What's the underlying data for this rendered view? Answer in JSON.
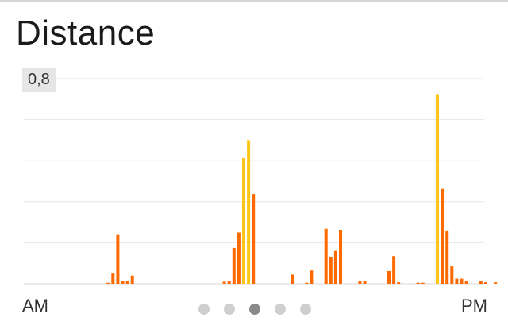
{
  "title": "Distance",
  "y_max_label": "0,8",
  "x_start_label": "AM",
  "x_end_label": "PM",
  "pager": {
    "count": 5,
    "active_index": 2
  },
  "colors": {
    "low": "#ff6a00",
    "high": "#ffc61a",
    "grid": "#e6e6e6",
    "baseline": "#d9d9d9",
    "dot": "#cfcfcf",
    "dot_active": "#8a8a8a"
  },
  "chart_data": {
    "type": "bar",
    "ylim": [
      0,
      0.8
    ],
    "grid": true,
    "x_range": [
      "AM",
      "PM"
    ],
    "bars": [
      {
        "slot": 12,
        "value": 0.004,
        "tier": "low"
      },
      {
        "slot": 13,
        "value": 0.04,
        "tier": "low"
      },
      {
        "slot": 14,
        "value": 0.19,
        "tier": "low"
      },
      {
        "slot": 15,
        "value": 0.012,
        "tier": "low"
      },
      {
        "slot": 16,
        "value": 0.012,
        "tier": "low"
      },
      {
        "slot": 17,
        "value": 0.032,
        "tier": "low"
      },
      {
        "slot": 36,
        "value": 0.008,
        "tier": "low"
      },
      {
        "slot": 37,
        "value": 0.012,
        "tier": "low"
      },
      {
        "slot": 38,
        "value": 0.14,
        "tier": "low"
      },
      {
        "slot": 39,
        "value": 0.2,
        "tier": "low"
      },
      {
        "slot": 40,
        "value": 0.49,
        "tier": "high"
      },
      {
        "slot": 41,
        "value": 0.56,
        "tier": "high"
      },
      {
        "slot": 42,
        "value": 0.35,
        "tier": "low"
      },
      {
        "slot": 50,
        "value": 0.036,
        "tier": "low"
      },
      {
        "slot": 53,
        "value": 0.004,
        "tier": "low"
      },
      {
        "slot": 54,
        "value": 0.052,
        "tier": "low"
      },
      {
        "slot": 57,
        "value": 0.215,
        "tier": "low"
      },
      {
        "slot": 58,
        "value": 0.105,
        "tier": "low"
      },
      {
        "slot": 59,
        "value": 0.128,
        "tier": "low"
      },
      {
        "slot": 60,
        "value": 0.21,
        "tier": "low"
      },
      {
        "slot": 64,
        "value": 0.012,
        "tier": "low"
      },
      {
        "slot": 65,
        "value": 0.012,
        "tier": "low"
      },
      {
        "slot": 70,
        "value": 0.05,
        "tier": "low"
      },
      {
        "slot": 71,
        "value": 0.108,
        "tier": "low"
      },
      {
        "slot": 72,
        "value": 0.006,
        "tier": "low"
      },
      {
        "slot": 76,
        "value": 0.004,
        "tier": "low"
      },
      {
        "slot": 77,
        "value": 0.004,
        "tier": "low"
      },
      {
        "slot": 80,
        "value": 0.74,
        "tier": "high"
      },
      {
        "slot": 81,
        "value": 0.37,
        "tier": "low"
      },
      {
        "slot": 82,
        "value": 0.205,
        "tier": "low"
      },
      {
        "slot": 83,
        "value": 0.068,
        "tier": "low"
      },
      {
        "slot": 84,
        "value": 0.02,
        "tier": "low"
      },
      {
        "slot": 85,
        "value": 0.02,
        "tier": "low"
      },
      {
        "slot": 86,
        "value": 0.01,
        "tier": "low"
      },
      {
        "slot": 89,
        "value": 0.01,
        "tier": "low"
      },
      {
        "slot": 90,
        "value": 0.006,
        "tier": "low"
      },
      {
        "slot": 92,
        "value": 0.006,
        "tier": "low"
      }
    ]
  }
}
